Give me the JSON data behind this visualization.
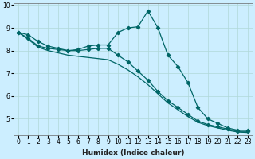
{
  "xlabel": "Humidex (Indice chaleur)",
  "background_color": "#cceeff",
  "grid_color": "#b0d8d8",
  "line_color": "#006666",
  "x_values": [
    0,
    1,
    2,
    3,
    4,
    5,
    6,
    7,
    8,
    9,
    10,
    11,
    12,
    13,
    14,
    15,
    16,
    17,
    18,
    19,
    20,
    21,
    22,
    23
  ],
  "line1_y": [
    8.8,
    8.7,
    8.4,
    8.2,
    8.1,
    8.0,
    8.05,
    8.2,
    8.25,
    8.25,
    8.8,
    9.0,
    9.05,
    9.75,
    9.0,
    7.8,
    7.3,
    6.6,
    5.5,
    5.0,
    4.8,
    4.6,
    4.5,
    4.5
  ],
  "line2_y": [
    8.8,
    8.55,
    8.2,
    8.1,
    8.05,
    8.0,
    8.0,
    8.05,
    8.1,
    8.1,
    7.8,
    7.5,
    7.1,
    6.7,
    6.2,
    5.8,
    5.5,
    5.2,
    4.9,
    4.75,
    4.65,
    4.55,
    4.45,
    4.45
  ],
  "line3_y": [
    8.8,
    8.5,
    8.15,
    8.0,
    7.9,
    7.8,
    7.75,
    7.7,
    7.65,
    7.6,
    7.4,
    7.15,
    6.85,
    6.5,
    6.1,
    5.7,
    5.4,
    5.1,
    4.85,
    4.7,
    4.6,
    4.5,
    4.42,
    4.4
  ],
  "ylim": [
    4.3,
    10.1
  ],
  "xlim": [
    -0.5,
    23.5
  ],
  "yticks": [
    5,
    6,
    7,
    8,
    9,
    10
  ],
  "xticks": [
    0,
    1,
    2,
    3,
    4,
    5,
    6,
    7,
    8,
    9,
    10,
    11,
    12,
    13,
    14,
    15,
    16,
    17,
    18,
    19,
    20,
    21,
    22,
    23
  ],
  "marker": "D",
  "marker_size": 2.2,
  "line_width": 0.9,
  "font_size_label": 6.5,
  "font_size_tick": 5.5
}
